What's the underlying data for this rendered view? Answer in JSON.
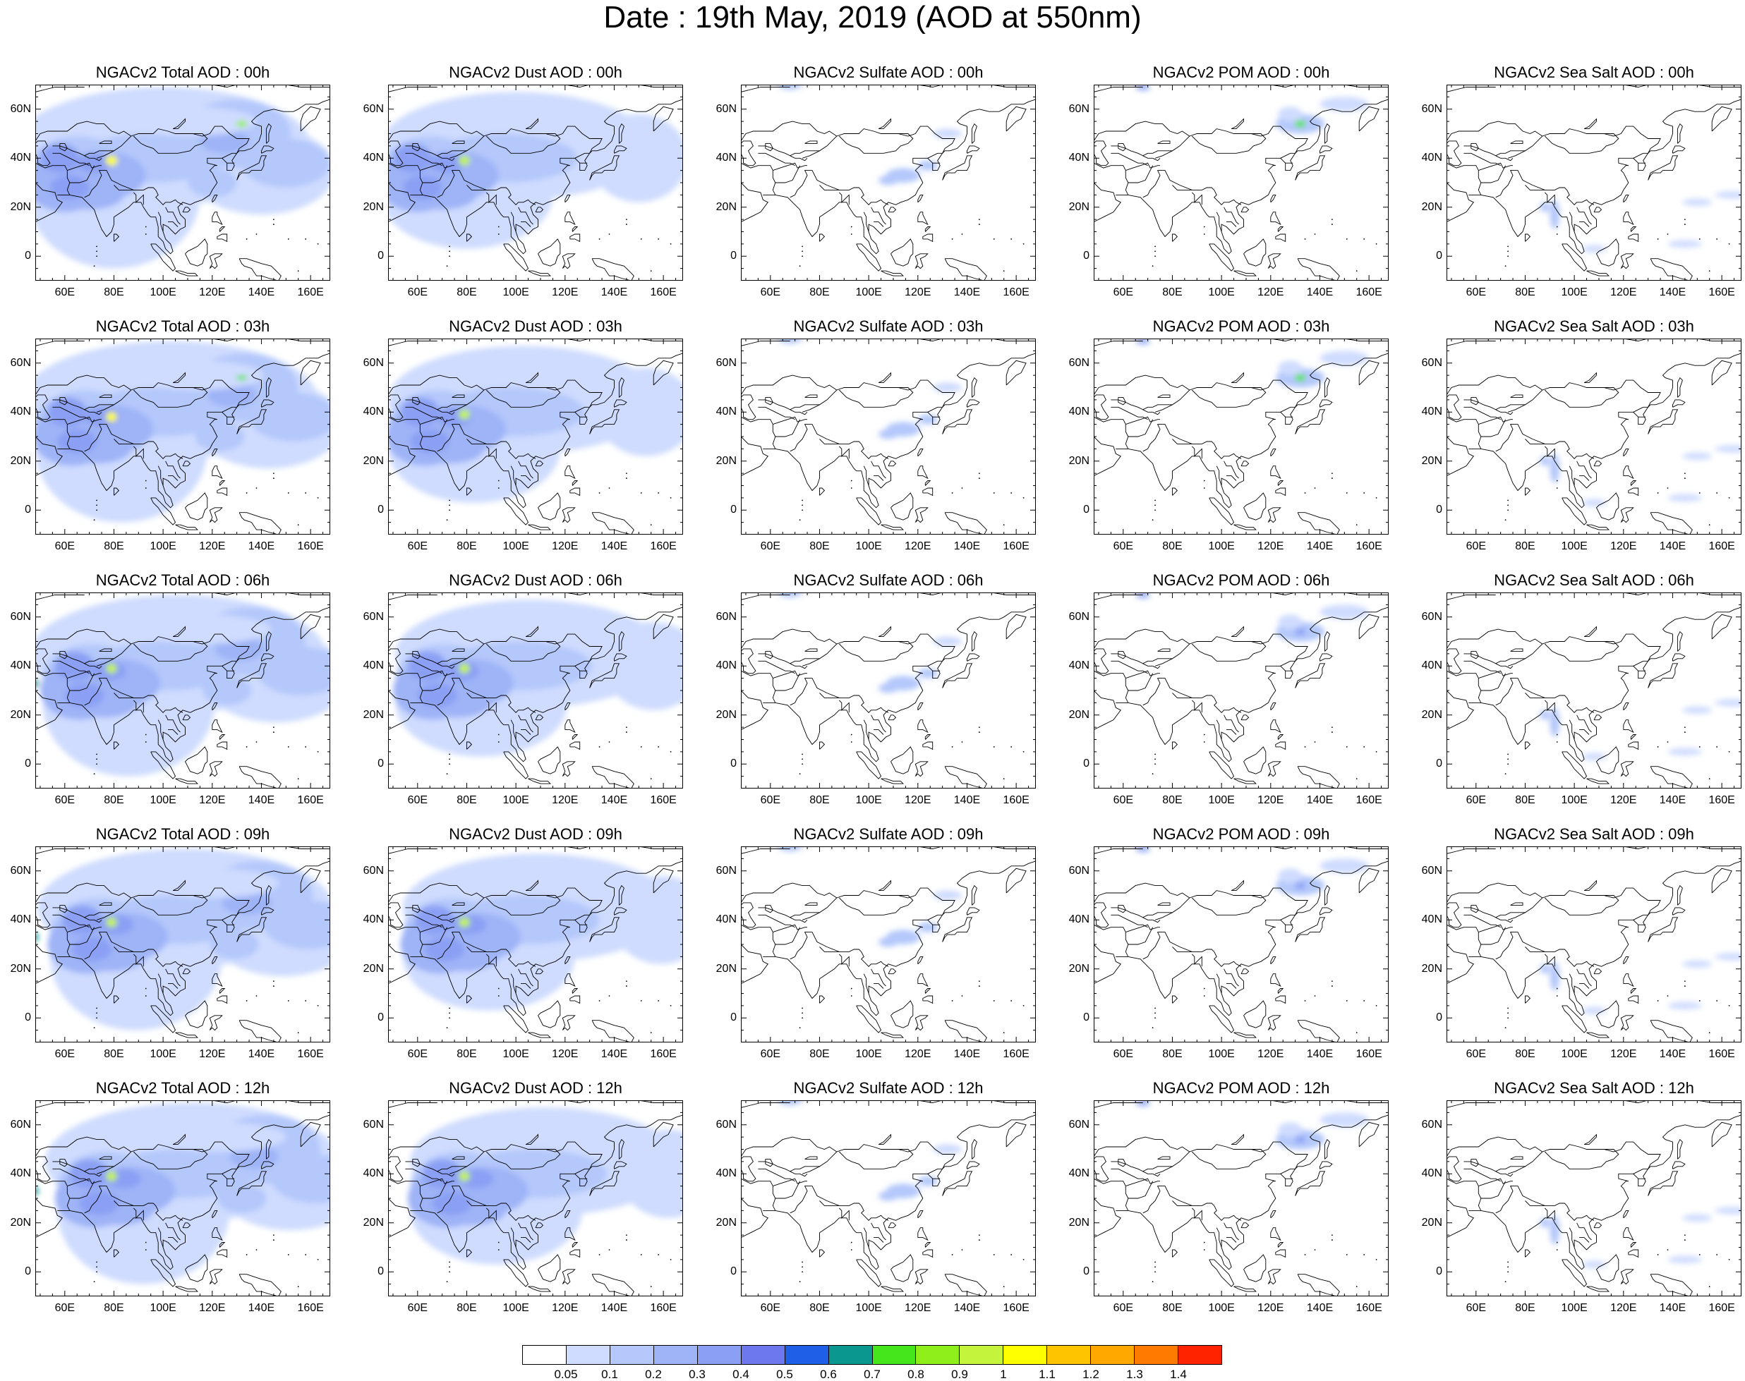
{
  "title": "Date : 19th May, 2019 (AOD at 550nm)",
  "x_ticks": [
    "60E",
    "80E",
    "100E",
    "120E",
    "140E",
    "160E"
  ],
  "y_ticks": [
    "60N",
    "40N",
    "20N",
    "0"
  ],
  "columns": [
    "total",
    "dust",
    "sulfate",
    "pom",
    "seasalt"
  ],
  "panels": [
    [
      "NGACv2 Total AOD : 00h",
      "NGACv2 Dust AOD : 00h",
      "NGACv2 Sulfate AOD : 00h",
      "NGACv2 POM AOD : 00h",
      "NGACv2 Sea Salt AOD : 00h"
    ],
    [
      "NGACv2 Total AOD : 03h",
      "NGACv2 Dust AOD : 03h",
      "NGACv2 Sulfate AOD : 03h",
      "NGACv2 POM AOD : 03h",
      "NGACv2 Sea Salt AOD : 03h"
    ],
    [
      "NGACv2 Total AOD : 06h",
      "NGACv2 Dust AOD : 06h",
      "NGACv2 Sulfate AOD : 06h",
      "NGACv2 POM AOD : 06h",
      "NGACv2 Sea Salt AOD : 06h"
    ],
    [
      "NGACv2 Total AOD : 09h",
      "NGACv2 Dust AOD : 09h",
      "NGACv2 Sulfate AOD : 09h",
      "NGACv2 POM AOD : 09h",
      "NGACv2 Sea Salt  AOD : 09h"
    ],
    [
      "NGACv2 Total AOD  : 12h",
      "NGACv2 Dust AOD : 12h",
      "NGACv2 Sulfate AOD : 12h",
      "NGACv2 POM  AOD : 12h",
      "NGACv2 Sea Salt  AOD : 12h"
    ]
  ],
  "colorbar": {
    "colors": [
      "#ffffff",
      "#cfdcff",
      "#b4c8fb",
      "#9fb4f7",
      "#8ba0f4",
      "#6e78ee",
      "#1f5fe8",
      "#0a978f",
      "#46e61c",
      "#8eef1a",
      "#c4f53c",
      "#ffff00",
      "#ffc400",
      "#ffa800",
      "#ff7a00",
      "#ff2400"
    ],
    "labels": [
      "0.05",
      "0.1",
      "0.2",
      "0.3",
      "0.4",
      "0.5",
      "0.6",
      "0.7",
      "0.8",
      "0.9",
      "1",
      "1.1",
      "1.2",
      "1.3",
      "1.4"
    ]
  }
}
